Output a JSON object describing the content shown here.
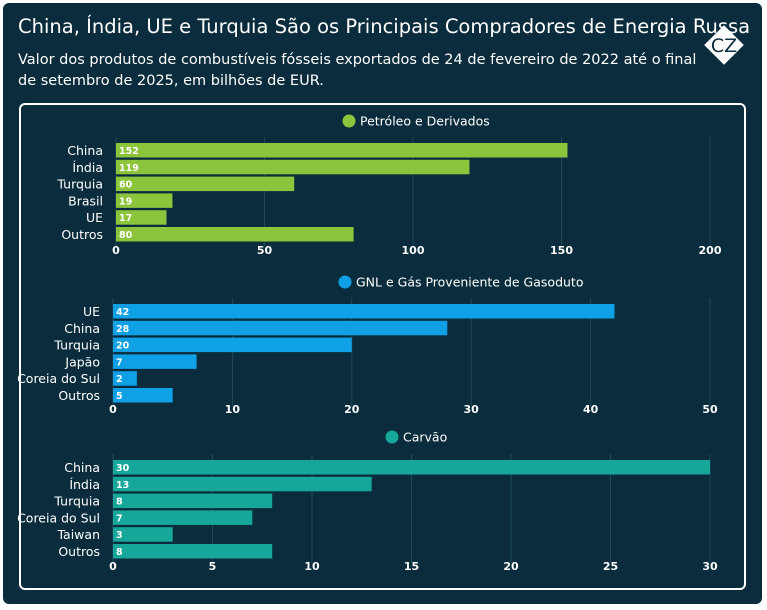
{
  "title": "China, Índia, UE e Turquia São os Principais Compradores de Energia Russa",
  "subtitle": "Valor dos produtos de combustíveis fósseis exportados de 24 de fevereiro de 2022 até o final de setembro de 2025, em bilhões de EUR.",
  "logo": {
    "text": "CZ",
    "icon": "crea-logo-icon"
  },
  "colors": {
    "background": "#0a2c3c",
    "oil": "#8cc43c",
    "gas": "#0fa0e6",
    "coal": "#17a79a",
    "text": "#ffffff"
  },
  "chart_data": [
    {
      "type": "bar",
      "orientation": "horizontal",
      "title": "Petróleo e Derivados",
      "color": "#8cc43c",
      "categories": [
        "China",
        "Índia",
        "Turquia",
        "Brasil",
        "UE",
        "Outros"
      ],
      "values": [
        152,
        119,
        60,
        19,
        17,
        80
      ],
      "xlim": [
        0,
        200
      ],
      "xticks": [
        0,
        50,
        100,
        150,
        200
      ],
      "grid": true,
      "legend": "top-center"
    },
    {
      "type": "bar",
      "orientation": "horizontal",
      "title": "GNL e Gás Proveniente de Gasoduto",
      "color": "#0fa0e6",
      "categories": [
        "UE",
        "China",
        "Turquia",
        "Japão",
        "Coreia do Sul",
        "Outros"
      ],
      "values": [
        42,
        28,
        20,
        7,
        2,
        5
      ],
      "xlim": [
        0,
        50
      ],
      "xticks": [
        0,
        10,
        20,
        30,
        40,
        50
      ],
      "grid": true,
      "legend": "top-center"
    },
    {
      "type": "bar",
      "orientation": "horizontal",
      "title": "Carvão",
      "color": "#17a79a",
      "categories": [
        "China",
        "Índia",
        "Turquia",
        "Coreia do Sul",
        "Taiwan",
        "Outros"
      ],
      "values": [
        30,
        13,
        8,
        7,
        3,
        8
      ],
      "xlim": [
        0,
        30
      ],
      "xticks": [
        0,
        5,
        10,
        15,
        20,
        25,
        30
      ],
      "grid": true,
      "legend": "top-center"
    }
  ]
}
